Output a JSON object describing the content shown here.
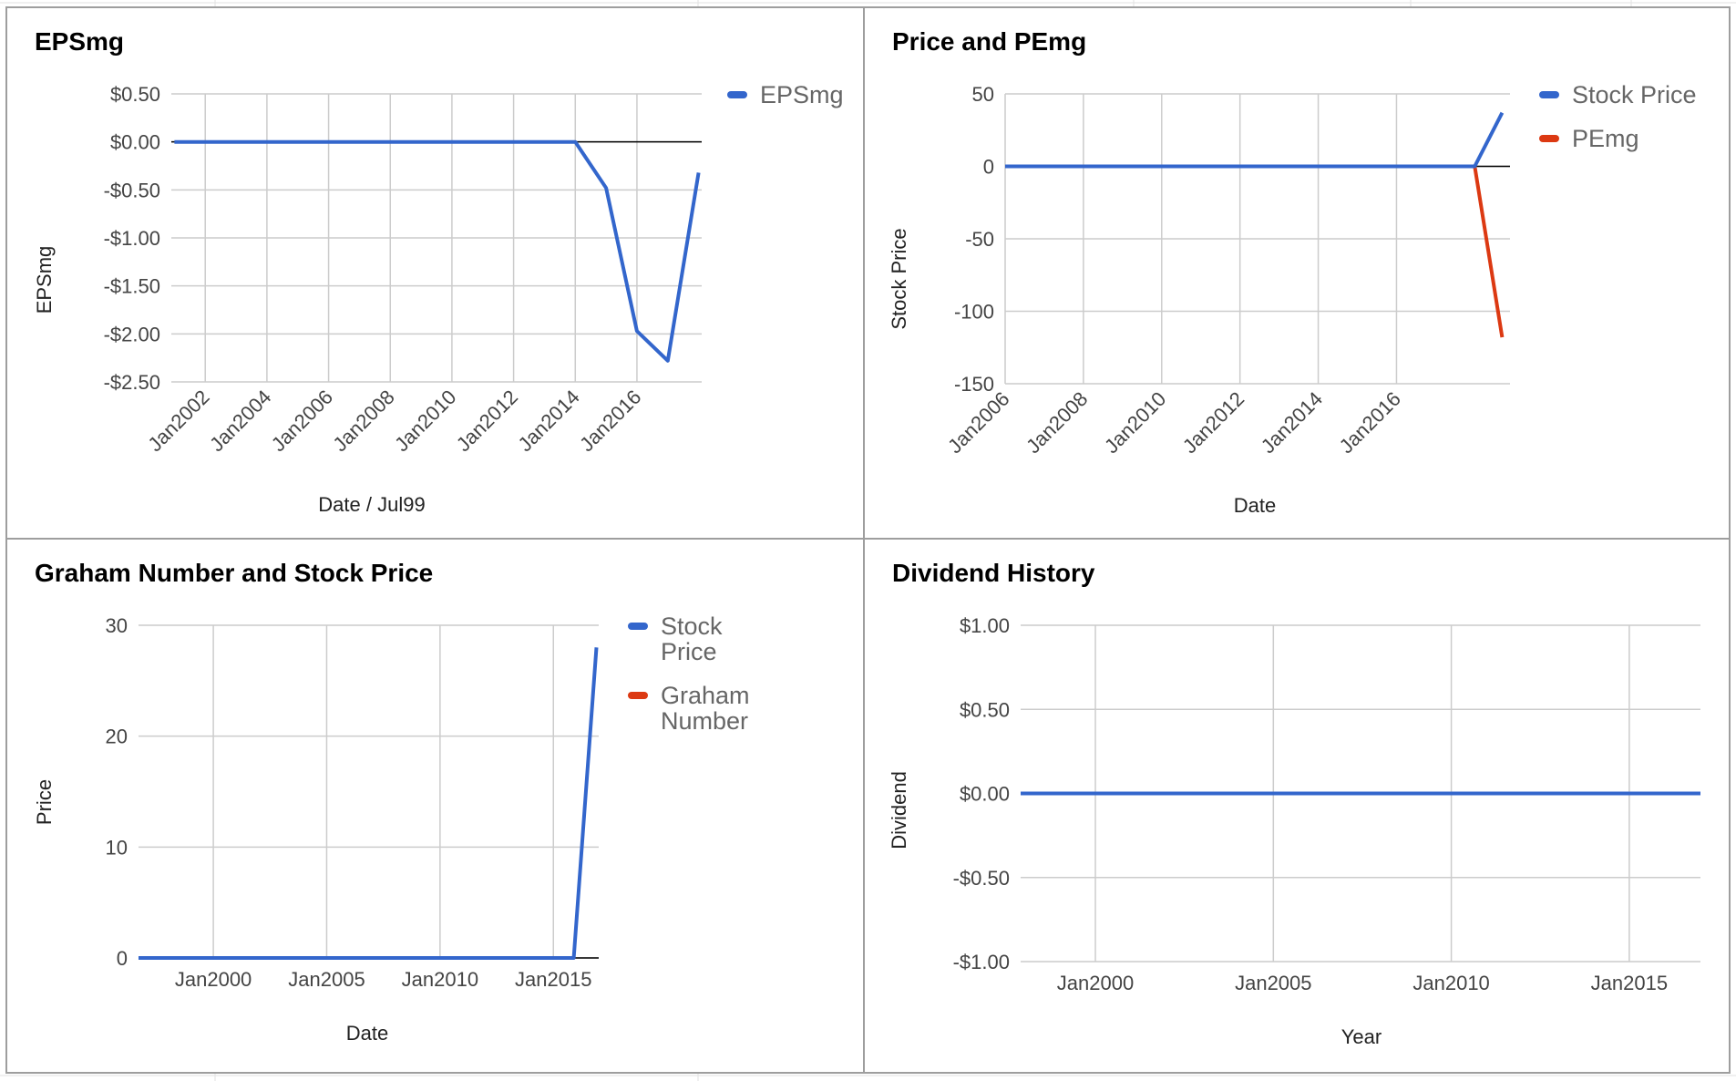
{
  "colors": {
    "blue": "#3366cc",
    "red": "#dc3912",
    "grid": "#cccccc",
    "zero": "#000000"
  },
  "chart_data": [
    {
      "type": "line",
      "title": "EPSmg",
      "xlabel": "Date / Jul99",
      "ylabel": "EPSmg",
      "xlim": [
        2000.9,
        2018.1
      ],
      "ylim": [
        -2.5,
        0.5
      ],
      "x_ticks": [
        2002,
        2004,
        2006,
        2008,
        2010,
        2012,
        2014,
        2016
      ],
      "x_tick_labels": [
        "Jan2002",
        "Jan2004",
        "Jan2006",
        "Jan2008",
        "Jan2010",
        "Jan2012",
        "Jan2014",
        "Jan2016"
      ],
      "y_ticks": [
        0.5,
        0,
        -0.5,
        -1,
        -1.5,
        -2,
        -2.5
      ],
      "y_tick_labels": [
        "$0.50",
        "$0.00",
        "-$0.50",
        "-$1.00",
        "-$1.50",
        "-$2.00",
        "-$2.50"
      ],
      "legend_position": "right",
      "series": [
        {
          "name": "EPSmg",
          "color": "blue",
          "x": [
            2001.0,
            2014.0,
            2015.0,
            2016.0,
            2017.0,
            2018.0
          ],
          "y": [
            0,
            0,
            -0.48,
            -1.97,
            -2.28,
            -0.32
          ]
        }
      ]
    },
    {
      "type": "line",
      "title": "Price and PEmg",
      "xlabel": "Date",
      "ylabel": "Stock Price",
      "xlim": [
        2006.0,
        2018.9
      ],
      "ylim": [
        -150,
        50
      ],
      "x_ticks": [
        2006,
        2008,
        2010,
        2012,
        2014,
        2016
      ],
      "x_tick_labels": [
        "Jan2006",
        "Jan2008",
        "Jan2010",
        "Jan2012",
        "Jan2014",
        "Jan2016"
      ],
      "y_ticks": [
        50,
        0,
        -50,
        -100,
        -150
      ],
      "y_tick_labels": [
        "50",
        "0",
        "-50",
        "-100",
        "-150"
      ],
      "legend_position": "right",
      "series": [
        {
          "name": "Stock Price",
          "color": "blue",
          "x": [
            2006.0,
            2009.0,
            2018.0,
            2018.7
          ],
          "y": [
            0,
            0,
            0,
            37
          ]
        },
        {
          "name": "PEmg",
          "color": "red",
          "x": [
            2009.0,
            2018.0,
            2018.7
          ],
          "y": [
            0,
            0,
            -118
          ]
        }
      ]
    },
    {
      "type": "line",
      "title": "Graham Number and Stock Price",
      "xlabel": "Date",
      "ylabel": "Price",
      "xlim": [
        1996.7,
        2017.0
      ],
      "ylim": [
        0,
        30
      ],
      "x_ticks": [
        2000,
        2005,
        2010,
        2015
      ],
      "x_tick_labels": [
        "Jan2000",
        "Jan2005",
        "Jan2010",
        "Jan2015"
      ],
      "y_ticks": [
        30,
        20,
        10,
        0
      ],
      "y_tick_labels": [
        "30",
        "20",
        "10",
        "0"
      ],
      "legend_position": "right",
      "series": [
        {
          "name": "Stock Price",
          "color": "blue",
          "x": [
            1996.7,
            2015.9,
            2016.9
          ],
          "y": [
            0,
            0,
            28
          ]
        },
        {
          "name": "Graham Number",
          "color": "red",
          "x": [
            1996.7,
            2007.8
          ],
          "y": [
            0,
            0
          ]
        }
      ]
    },
    {
      "type": "line",
      "title": "Dividend History",
      "xlabel": "Year",
      "ylabel": "Dividend",
      "xlim": [
        1997.9,
        2017.0
      ],
      "ylim": [
        -1,
        1
      ],
      "x_ticks": [
        2000,
        2005,
        2010,
        2015
      ],
      "x_tick_labels": [
        "Jan2000",
        "Jan2005",
        "Jan2010",
        "Jan2015"
      ],
      "y_ticks": [
        1,
        0.5,
        0,
        -0.5,
        -1
      ],
      "y_tick_labels": [
        "$1.00",
        "$0.50",
        "$0.00",
        "-$0.50",
        "-$1.00"
      ],
      "legend_position": "none",
      "series": [
        {
          "name": "",
          "color": "blue",
          "x": [
            1997.9,
            2017.0
          ],
          "y": [
            0,
            0
          ]
        }
      ]
    }
  ]
}
